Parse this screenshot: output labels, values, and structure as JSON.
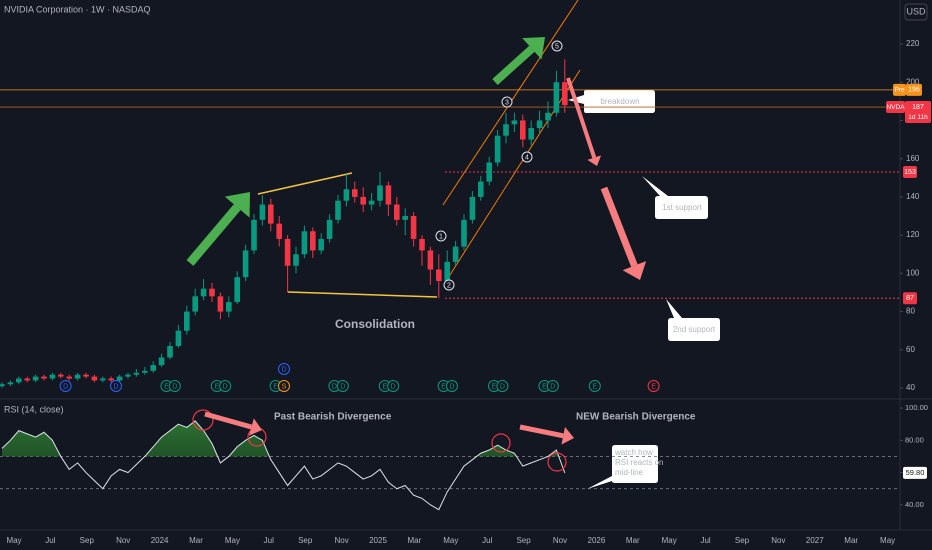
{
  "chart_data": {
    "type": "candlestick",
    "title": "NVIDIA Corporation · 1W · NASDAQ",
    "currency": "USD",
    "up_color": "#089981",
    "down_color": "#f23645",
    "open": [
      41,
      42,
      43,
      45,
      44,
      46,
      45,
      47,
      46,
      45,
      47,
      46,
      44,
      45,
      44,
      46,
      47,
      48,
      49,
      52,
      56,
      62,
      70,
      80,
      88,
      92,
      88,
      80,
      85,
      98,
      112,
      128,
      136,
      126,
      118,
      104,
      110,
      122,
      112,
      118,
      128,
      138,
      144,
      140,
      136,
      138,
      146,
      136,
      128,
      130,
      118,
      112,
      102,
      96,
      106,
      114,
      128,
      140,
      148,
      158,
      172,
      178,
      180,
      170,
      176,
      180,
      184,
      200
    ],
    "high": [
      43,
      44,
      46,
      46,
      47,
      47,
      48,
      48,
      47,
      48,
      48,
      47,
      46,
      46,
      47,
      48,
      50,
      51,
      54,
      58,
      64,
      73,
      83,
      92,
      97,
      95,
      90,
      88,
      101,
      115,
      131,
      141,
      139,
      130,
      120,
      114,
      125,
      124,
      121,
      131,
      141,
      152,
      148,
      145,
      142,
      153,
      148,
      140,
      134,
      132,
      120,
      114,
      110,
      112,
      117,
      131,
      143,
      151,
      161,
      175,
      184,
      184,
      183,
      180,
      185,
      190,
      206,
      212
    ],
    "low": [
      40,
      41,
      42,
      43,
      43,
      44,
      44,
      45,
      44,
      44,
      45,
      43,
      43,
      43,
      43,
      45,
      46,
      47,
      48,
      51,
      55,
      61,
      68,
      78,
      86,
      85,
      76,
      77,
      84,
      96,
      110,
      125,
      122,
      114,
      90,
      100,
      108,
      108,
      110,
      116,
      126,
      135,
      137,
      132,
      133,
      135,
      130,
      125,
      120,
      114,
      104,
      94,
      87,
      92,
      104,
      112,
      126,
      138,
      146,
      156,
      168,
      174,
      166,
      167,
      173,
      176,
      182,
      184
    ],
    "close": [
      42,
      43,
      45,
      44,
      46,
      45,
      47,
      46,
      45,
      47,
      46,
      44,
      45,
      44,
      46,
      47,
      48,
      49,
      52,
      56,
      62,
      70,
      80,
      88,
      92,
      88,
      80,
      85,
      98,
      112,
      128,
      136,
      126,
      118,
      104,
      110,
      122,
      112,
      118,
      128,
      138,
      144,
      140,
      136,
      138,
      146,
      136,
      128,
      130,
      118,
      112,
      102,
      96,
      106,
      114,
      128,
      140,
      148,
      158,
      172,
      178,
      180,
      170,
      176,
      180,
      184,
      200,
      188
    ],
    "ylim": [
      34.8,
      243
    ],
    "yticks": [
      40,
      60,
      80,
      100,
      120,
      140,
      160,
      180,
      200,
      220
    ],
    "x_labels": [
      "May",
      "Jul",
      "Sep",
      "Nov",
      "2024",
      "Mar",
      "May",
      "Jul",
      "Sep",
      "Nov",
      "2025",
      "Mar",
      "May",
      "Jul",
      "Sep",
      "Nov",
      "2026",
      "Mar",
      "May",
      "Jul",
      "Sep",
      "Nov",
      "2027",
      "Mar",
      "May"
    ],
    "pre_market": {
      "name": "Pre",
      "value": 196
    },
    "last": {
      "name": "NVDA",
      "value": 187,
      "countdown": "1d 11h"
    },
    "supports": [
      153,
      87
    ],
    "events": {
      "x": [
        4,
        10,
        16,
        17,
        22,
        23,
        29,
        30,
        30,
        36,
        37,
        42,
        43,
        49,
        50,
        55,
        56,
        61,
        62,
        67,
        74
      ],
      "labels": [
        "D",
        "D",
        "E",
        "D",
        "E",
        "D",
        "E",
        "S",
        "D",
        "D",
        "D",
        "E",
        "D",
        "E",
        "D",
        "E",
        "D",
        "E",
        "D",
        "E",
        "E"
      ]
    },
    "wave_labels": [
      "1",
      "2",
      "3",
      "4",
      "5"
    ],
    "annotations": {
      "breakdown": "breakdown",
      "support1": "1st support",
      "support2": "2nd support",
      "consolidation": "Consolidation",
      "past_divergence": "Past Bearish Divergence",
      "new_divergence": "NEW Bearish Divergence",
      "watch": [
        "watch how",
        "RSI reacts on",
        "mid-line"
      ]
    },
    "rsi": {
      "title": "RSI (14, close)",
      "color": "#e0e3eb",
      "values": [
        75,
        80,
        86,
        84,
        82,
        85,
        80,
        70,
        62,
        66,
        60,
        55,
        50,
        58,
        62,
        60,
        65,
        70,
        76,
        82,
        86,
        90,
        88,
        92,
        86,
        78,
        66,
        70,
        76,
        80,
        83,
        80,
        68,
        60,
        52,
        58,
        64,
        56,
        58,
        62,
        66,
        64,
        60,
        56,
        58,
        62,
        54,
        50,
        52,
        46,
        44,
        40,
        37,
        48,
        56,
        64,
        68,
        72,
        74,
        77,
        74,
        72,
        64,
        66,
        68,
        70,
        74,
        59.8
      ],
      "last_label": "59.80",
      "ylim": [
        24.4,
        105
      ],
      "yticks": [
        {
          "value": 40,
          "label": "40.00"
        },
        {
          "value": 60,
          "label": "60.00"
        },
        {
          "value": 80,
          "label": "80.00"
        },
        {
          "value": 100,
          "label": "100.00"
        }
      ],
      "levels": [
        70,
        50
      ]
    }
  }
}
